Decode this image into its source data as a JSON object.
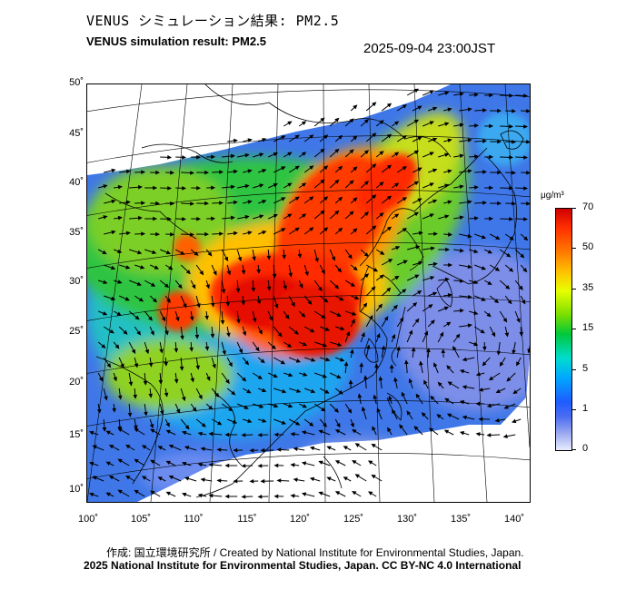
{
  "title_jp": "VENUS シミュレーション結果: PM2.5",
  "title_en": "VENUS simulation result: PM2.5",
  "timestamp": "2025-09-04 23:00JST",
  "lat_labels": [
    "50˚",
    "45˚",
    "40˚",
    "35˚",
    "30˚",
    "25˚",
    "20˚",
    "15˚",
    "10˚"
  ],
  "lon_labels": [
    "100˚",
    "105˚",
    "110˚",
    "115˚",
    "120˚",
    "125˚",
    "130˚",
    "135˚",
    "140˚"
  ],
  "colorbar": {
    "unit": "μg/m³",
    "labels": [
      "70",
      "50",
      "35",
      "15",
      "5",
      "1",
      "0"
    ],
    "colors": [
      "#cf0000",
      "#ff7a00",
      "#e8ff00",
      "#00c83c",
      "#00a8ff",
      "#1e5cff",
      "#e8ecfc"
    ]
  },
  "footer_credit": "作成: 国立環境研究所 / Created by National Institute for Environmental Studies, Japan.",
  "footer_license": "2025 National Institute for Environmental Studies, Japan. CC BY-NC 4.0 International"
}
